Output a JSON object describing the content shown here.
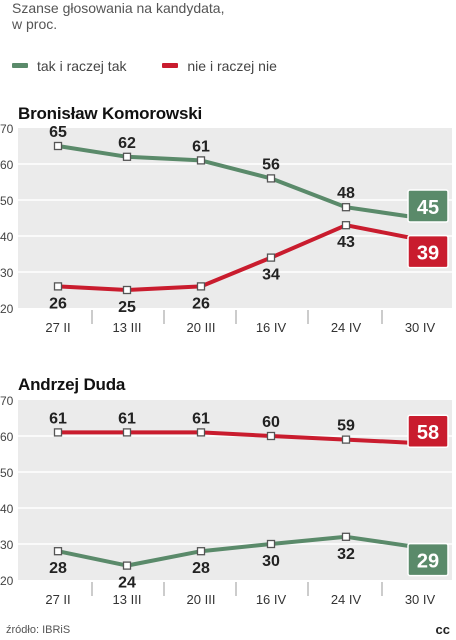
{
  "subtitle_line1": "Szanse głosowania na kandydata,",
  "subtitle_line2": "w proc.",
  "legend": [
    {
      "label": "tak i raczej tak",
      "color": "#5a8a6a"
    },
    {
      "label": "nie i raczej nie",
      "color": "#c91c2e"
    }
  ],
  "colors": {
    "yes": "#5a8a6a",
    "no": "#c91c2e",
    "panel": "#ebebeb"
  },
  "chart_data": [
    {
      "type": "line",
      "title": "Bronisław Komorowski",
      "categories": [
        "27 II",
        "13 III",
        "20 III",
        "16 IV",
        "24 IV",
        "30 IV"
      ],
      "ylim": [
        20,
        70
      ],
      "yticks": [
        20,
        30,
        40,
        50,
        60,
        70
      ],
      "series": [
        {
          "name": "tak i raczej tak",
          "values": [
            65,
            62,
            61,
            56,
            48,
            45
          ]
        },
        {
          "name": "nie i raczej nie",
          "values": [
            26,
            25,
            26,
            34,
            43,
            39
          ]
        }
      ]
    },
    {
      "type": "line",
      "title": "Andrzej Duda",
      "categories": [
        "27 II",
        "13 III",
        "20 III",
        "16 IV",
        "24 IV",
        "30 IV"
      ],
      "ylim": [
        20,
        70
      ],
      "yticks": [
        20,
        30,
        40,
        50,
        60,
        70
      ],
      "series": [
        {
          "name": "tak i raczej tak",
          "values": [
            28,
            24,
            28,
            30,
            32,
            29
          ]
        },
        {
          "name": "nie i raczej nie",
          "values": [
            61,
            61,
            61,
            60,
            59,
            58
          ]
        }
      ]
    }
  ],
  "source": "źródło: IBRiS",
  "logo": "cc"
}
